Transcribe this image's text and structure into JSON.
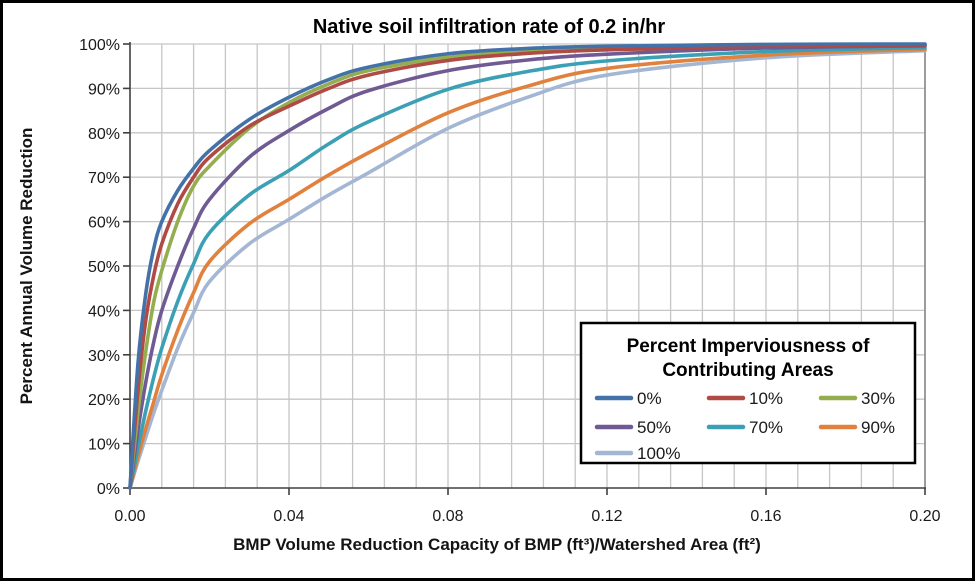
{
  "chart_data": {
    "type": "line",
    "title": "Native soil infiltration rate of 0.2 in/hr",
    "xlabel": "BMP Volume Reduction Capacity of BMP (ft³)/Watershed Area (ft²)",
    "ylabel": "Percent Annual Volume Reduction",
    "xlim": [
      0,
      0.2
    ],
    "ylim": [
      0,
      100
    ],
    "x_tick_values": [
      0,
      0.04,
      0.08,
      0.12,
      0.16,
      0.2
    ],
    "x_tick_labels": [
      "0.00",
      "0.04",
      "0.08",
      "0.12",
      "0.16",
      "0.20"
    ],
    "x_minor_grid_step": 0.008,
    "y_tick_step": 10,
    "y_tick_labels": [
      "0%",
      "10%",
      "20%",
      "30%",
      "40%",
      "50%",
      "60%",
      "70%",
      "80%",
      "90%",
      "100%"
    ],
    "grid": true,
    "legend": {
      "title_lines": [
        "Percent Imperviousness of",
        "Contributing Areas"
      ],
      "position": "inside-bottom-right",
      "columns": 3
    },
    "x": [
      0,
      0.002,
      0.004,
      0.006,
      0.008,
      0.012,
      0.016,
      0.02,
      0.03,
      0.04,
      0.05,
      0.06,
      0.08,
      0.1,
      0.12,
      0.16,
      0.2
    ],
    "series": [
      {
        "name": "0%",
        "color": "#4472A8",
        "values": [
          0,
          28,
          44,
          54,
          60,
          67,
          72,
          76,
          83,
          88,
          92,
          94.8,
          97.8,
          99,
          99.5,
          99.9,
          100
        ]
      },
      {
        "name": "10%",
        "color": "#AF4A44",
        "values": [
          0,
          22,
          38,
          48,
          55,
          64,
          70,
          74.5,
          81.5,
          86,
          90,
          93,
          96.3,
          97.9,
          98.7,
          99.5,
          99.8
        ]
      },
      {
        "name": "30%",
        "color": "#94AE4F",
        "values": [
          0,
          17,
          31,
          42,
          49,
          60,
          68,
          72.5,
          81,
          86.8,
          91,
          94,
          97,
          98.4,
          99.1,
          99.7,
          99.9
        ]
      },
      {
        "name": "50%",
        "color": "#705A93",
        "values": [
          0,
          13,
          24,
          33,
          40,
          50,
          58.5,
          65,
          74.5,
          80.5,
          85.5,
          89.5,
          94,
          96.4,
          97.7,
          99.1,
          99.6
        ]
      },
      {
        "name": "70%",
        "color": "#3BA0B5",
        "values": [
          0,
          9,
          17.5,
          25,
          31.5,
          42,
          50.5,
          57.5,
          66,
          71.5,
          77.5,
          82.5,
          89.8,
          93.8,
          96.2,
          98.3,
          99.2
        ]
      },
      {
        "name": "90%",
        "color": "#E0813D",
        "values": [
          0,
          7,
          13.5,
          19.5,
          25.5,
          35.5,
          44,
          51,
          59.5,
          65,
          70.5,
          75.5,
          84.5,
          90.5,
          94.5,
          97.5,
          98.8
        ]
      },
      {
        "name": "100%",
        "color": "#A3B6D3",
        "values": [
          0,
          6,
          11.5,
          17,
          22,
          31.5,
          39.5,
          46.5,
          55,
          60.5,
          66,
          71,
          81,
          88,
          93,
          96.9,
          98.5
        ]
      }
    ],
    "style_colors": {
      "gridline": "#C6C6C6",
      "axis_line": "#404040",
      "plot_border": "#808080",
      "figure_border": "#000000"
    }
  }
}
